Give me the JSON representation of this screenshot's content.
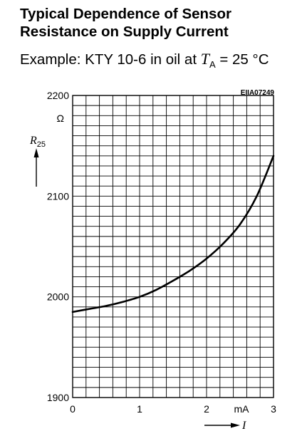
{
  "title_line1": "Typical Dependence of Sensor",
  "title_line2": "Resistance on Supply Current",
  "subtitle": {
    "prefix": "Example: KTY 10-6 in oil at ",
    "var": "T",
    "sub": "A",
    "suffix": " = 25 °C"
  },
  "figure_code": "EIIA07249",
  "chart_data": {
    "type": "line",
    "x": [
      0,
      0.25,
      0.5,
      0.75,
      1.0,
      1.25,
      1.5,
      1.75,
      2.0,
      2.25,
      2.5,
      2.75,
      3.0
    ],
    "series": [
      {
        "values": [
          1985,
          1988,
          1991,
          1995,
          2000,
          2007,
          2016,
          2026,
          2038,
          2053,
          2072,
          2100,
          2140
        ]
      }
    ],
    "xlabel": "I",
    "xunit": "mA",
    "ylabel": "R",
    "ylabel_sub": "25",
    "yunit": "Ω",
    "xlim": [
      0,
      3
    ],
    "ylim": [
      1900,
      2200
    ],
    "x_ticks": [
      "0",
      "1",
      "2",
      "3"
    ],
    "y_ticks": [
      "1900",
      "2000",
      "2100",
      "2200"
    ],
    "grid": true
  }
}
